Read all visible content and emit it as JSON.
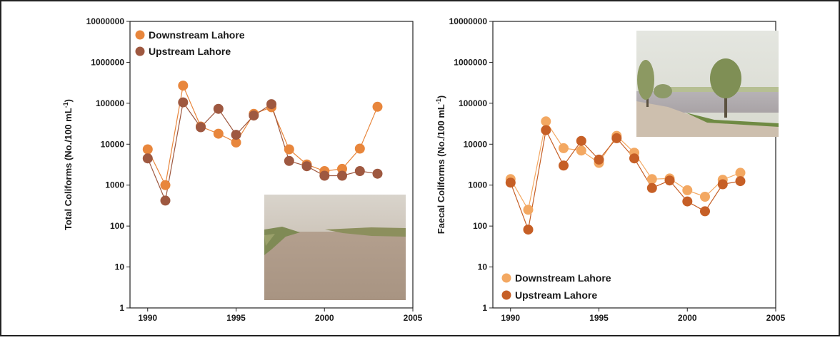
{
  "chart_data": [
    {
      "type": "line",
      "ylabel_main": "Total Coliforms (No./100 mL",
      "ylabel_sup": "-1",
      "ylabel_tail": ")",
      "y_scale": "log",
      "ylim": [
        1,
        10000000
      ],
      "xlim": [
        1989,
        2005
      ],
      "y_ticks": [
        "1",
        "10",
        "100",
        "1000",
        "10000",
        "100000",
        "1000000",
        "10000000"
      ],
      "x_ticks": [
        "1990",
        "1995",
        "2000",
        "2005"
      ],
      "legend_position": "top-left",
      "grid": false,
      "x": [
        1990,
        1991,
        1992,
        1993,
        1994,
        1995,
        1996,
        1997,
        1998,
        1999,
        2000,
        2001,
        2002,
        2003
      ],
      "series": [
        {
          "name": "Downstream Lahore",
          "color": "#e8863c",
          "values": [
            7500,
            1000,
            270000,
            27000,
            18000,
            11000,
            55000,
            80000,
            7500,
            3200,
            2200,
            2500,
            7800,
            82000
          ]
        },
        {
          "name": "Upstream Lahore",
          "color": "#9e5840",
          "values": [
            4500,
            420,
            105000,
            26000,
            73000,
            17000,
            50000,
            95000,
            3900,
            2900,
            1700,
            1700,
            2200,
            1900
          ]
        }
      ]
    },
    {
      "type": "line",
      "ylabel_main": "Faecal Coliforms (No./100 mL",
      "ylabel_sup": "-1",
      "ylabel_tail": ")",
      "y_scale": "log",
      "ylim": [
        1,
        10000000
      ],
      "xlim": [
        1989,
        2005
      ],
      "y_ticks": [
        "1",
        "10",
        "100",
        "1000",
        "10000",
        "100000",
        "1000000",
        "10000000"
      ],
      "x_ticks": [
        "1990",
        "1995",
        "2000",
        "2005"
      ],
      "legend_position": "bottom-left",
      "grid": false,
      "x": [
        1990,
        1991,
        1992,
        1993,
        1994,
        1995,
        1996,
        1997,
        1998,
        1999,
        2000,
        2001,
        2002,
        2003
      ],
      "series": [
        {
          "name": "Downstream Lahore",
          "color": "#f3a862",
          "values": [
            1400,
            250,
            36000,
            8000,
            7000,
            3500,
            16000,
            6200,
            1400,
            1450,
            750,
            520,
            1350,
            2000
          ]
        },
        {
          "name": "Upstream Lahore",
          "color": "#c65f26",
          "values": [
            1150,
            82,
            22000,
            3000,
            12000,
            4200,
            14000,
            4500,
            850,
            1300,
            400,
            230,
            1050,
            1250
          ]
        }
      ]
    }
  ],
  "photos": [
    {
      "name": "river-photo-left",
      "tone": "#b8a99a"
    },
    {
      "name": "river-photo-right",
      "tone": "#c8c4b6"
    }
  ]
}
